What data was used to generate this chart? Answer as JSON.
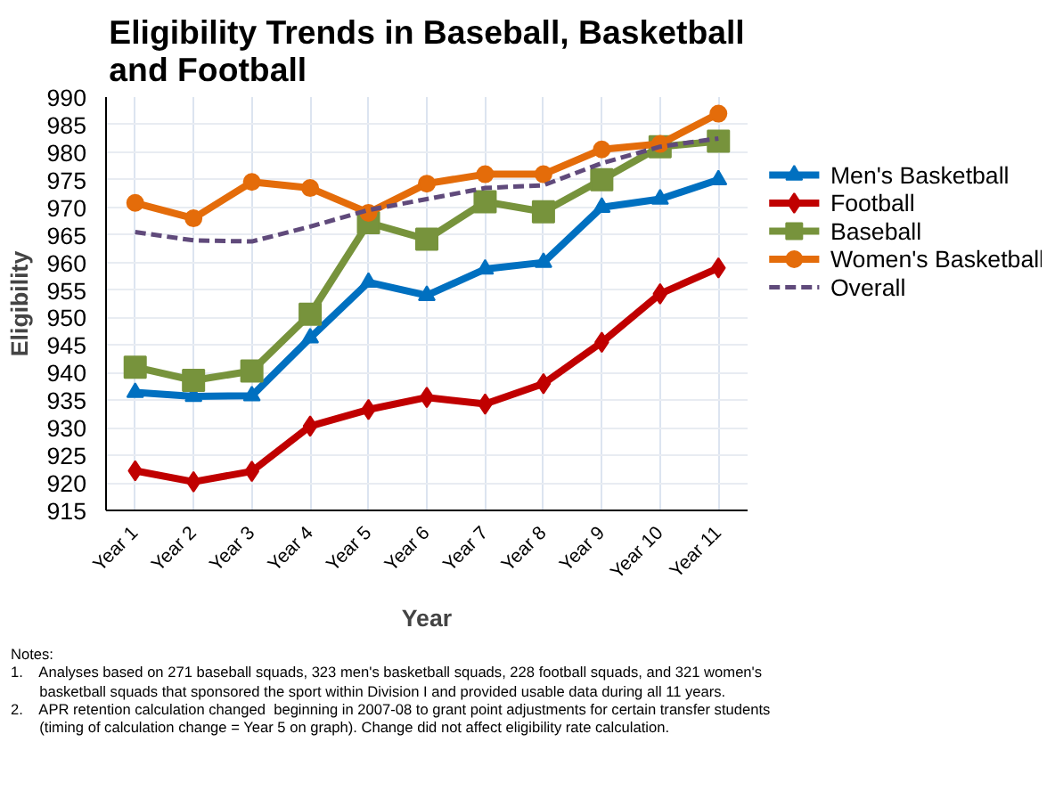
{
  "chart_data": {
    "type": "line",
    "title": "Eligibility Trends in Baseball, Basketball\nand Football",
    "xlabel": "Year",
    "ylabel": "Eligibility",
    "categories": [
      "Year 1",
      "Year 2",
      "Year 3",
      "Year 4",
      "Year 5",
      "Year 6",
      "Year 7",
      "Year 8",
      "Year 9",
      "Year 10",
      "Year 11"
    ],
    "ylim": [
      915,
      990
    ],
    "yticks": [
      915,
      920,
      925,
      930,
      935,
      940,
      945,
      950,
      955,
      960,
      965,
      970,
      975,
      980,
      985,
      990
    ],
    "grid": true,
    "legend": "right",
    "series": [
      {
        "name": "Men's Basketball",
        "color": "#0070c0",
        "marker": "triangle",
        "line_style": "solid",
        "values": [
          936.4,
          935.7,
          935.8,
          946.3,
          956.4,
          954,
          958.8,
          960,
          970,
          971.5,
          975
        ]
      },
      {
        "name": "Football",
        "color": "#c00000",
        "marker": "diamond",
        "line_style": "solid",
        "values": [
          922.2,
          920.2,
          922.1,
          930.3,
          933.3,
          935.5,
          934.3,
          938,
          945.5,
          954.3,
          959
        ]
      },
      {
        "name": "Baseball",
        "color": "#77933c",
        "marker": "square",
        "line_style": "solid",
        "values": [
          941,
          938.6,
          940.3,
          950.6,
          967.2,
          964.2,
          971,
          969.2,
          975,
          981,
          982
        ]
      },
      {
        "name": "Women's Basketball",
        "color": "#e46c0a",
        "marker": "circle",
        "line_style": "solid",
        "values": [
          970.8,
          968,
          974.6,
          973.5,
          969,
          974.3,
          976,
          976,
          980.5,
          981.5,
          987
        ]
      },
      {
        "name": "Overall",
        "color": "#604a7b",
        "marker": "none",
        "line_style": "dashed",
        "values": [
          965.5,
          964,
          963.8,
          966.5,
          969.5,
          971.5,
          973.5,
          974,
          978,
          981,
          982.5
        ]
      }
    ],
    "annotations": [
      "Notes:",
      "1.    Analyses based on 271 baseball squads, 323 men's basketball squads, 228 football squads, and 321 women's",
      "       basketball squads that sponsored the sport within Division I and provided usable data during all 11 years.",
      "2.    APR retention calculation changed  beginning in 2007-08 to grant point adjustments for certain transfer students",
      "       (timing of calculation change = Year 5 on graph). Change did not affect eligibility rate calculation."
    ]
  }
}
